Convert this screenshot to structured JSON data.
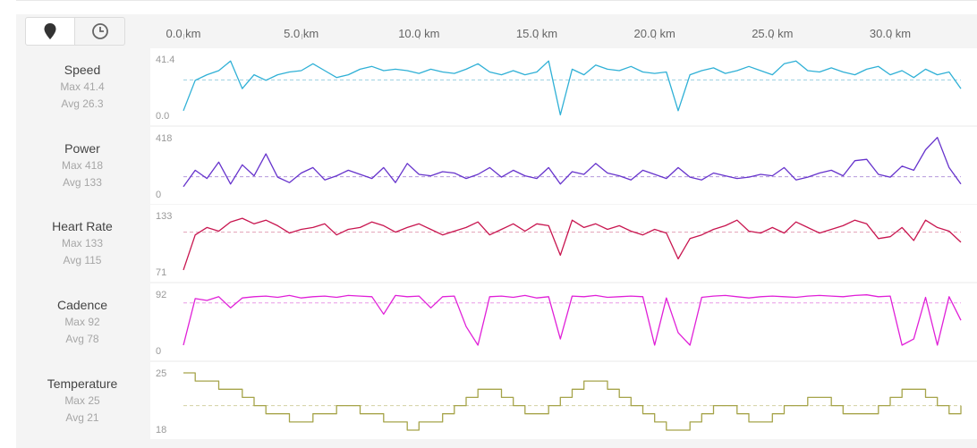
{
  "toolbar": {
    "distance_icon": "map-pin-icon",
    "time_icon": "clock-icon"
  },
  "colors": {
    "speed": "#2fb0d6",
    "power": "#6633cc",
    "heart_rate": "#c8154f",
    "cadence": "#e020d8",
    "temperature": "#a6a44a",
    "avg_line_speed": "#9ccfe0",
    "avg_line_power": "#b59adc",
    "avg_line_heart_rate": "#e3a0b6",
    "avg_line_cadence": "#e99ae6",
    "avg_line_temperature": "#d2d1a3"
  },
  "x_axis": {
    "unit": "km",
    "max": 33.0,
    "ticks": [
      {
        "value": 0,
        "label": "0.0 km"
      },
      {
        "value": 5,
        "label": "5.0 km"
      },
      {
        "value": 10,
        "label": "10.0 km"
      },
      {
        "value": 15,
        "label": "15.0 km"
      },
      {
        "value": 20,
        "label": "20.0 km"
      },
      {
        "value": 25,
        "label": "25.0 km"
      },
      {
        "value": 30,
        "label": "30.0 km"
      }
    ]
  },
  "rows": [
    {
      "key": "speed",
      "label": "Speed",
      "max_text": "Max 41.4",
      "avg_text": "Avg 26.3",
      "ymax_label": "41.4",
      "ymin_label": "0.0"
    },
    {
      "key": "power",
      "label": "Power",
      "max_text": "Max 418",
      "avg_text": "Avg 133",
      "ymax_label": "418",
      "ymin_label": "0"
    },
    {
      "key": "heart_rate",
      "label": "Heart Rate",
      "max_text": "Max 133",
      "avg_text": "Avg 115",
      "ymax_label": "133",
      "ymin_label": "71"
    },
    {
      "key": "cadence",
      "label": "Cadence",
      "max_text": "Max 92",
      "avg_text": "Avg 78",
      "ymax_label": "92",
      "ymin_label": "0"
    },
    {
      "key": "temperature",
      "label": "Temperature",
      "max_text": "Max 25",
      "avg_text": "Avg 21",
      "ymax_label": "25",
      "ymin_label": "18"
    }
  ],
  "chart_data": {
    "type": "line",
    "x": [
      0.0,
      0.5,
      1.0,
      1.5,
      2.0,
      2.5,
      3.0,
      3.5,
      4.0,
      4.5,
      5.0,
      5.5,
      6.0,
      6.5,
      7.0,
      7.5,
      8.0,
      8.5,
      9.0,
      9.5,
      10.0,
      10.5,
      11.0,
      11.5,
      12.0,
      12.5,
      13.0,
      13.5,
      14.0,
      14.5,
      15.0,
      15.5,
      16.0,
      16.5,
      17.0,
      17.5,
      18.0,
      18.5,
      19.0,
      19.5,
      20.0,
      20.5,
      21.0,
      21.5,
      22.0,
      22.5,
      23.0,
      23.5,
      24.0,
      24.5,
      25.0,
      25.5,
      26.0,
      26.5,
      27.0,
      27.5,
      28.0,
      28.5,
      29.0,
      29.5,
      30.0,
      30.5,
      31.0,
      31.5,
      32.0,
      32.5,
      33.0
    ],
    "xlabel": "",
    "series": [
      {
        "name": "Speed",
        "ylim": [
          0,
          41.4
        ],
        "average": 26.3,
        "values": [
          4,
          26,
          30,
          33,
          40,
          20,
          30,
          26,
          30,
          32,
          33,
          38,
          33,
          28,
          30,
          34,
          36,
          33,
          34,
          33,
          31,
          34,
          32,
          31,
          34,
          38,
          32,
          30,
          33,
          30,
          32,
          40,
          1,
          34,
          30,
          37,
          34,
          33,
          36,
          32,
          31,
          32,
          4,
          30,
          33,
          35,
          31,
          33,
          36,
          33,
          30,
          38,
          40,
          33,
          32,
          35,
          32,
          30,
          34,
          36,
          30,
          33,
          28,
          34,
          30,
          32,
          20
        ]
      },
      {
        "name": "Power",
        "ylim": [
          0,
          418
        ],
        "average": 133,
        "values": [
          60,
          180,
          120,
          240,
          80,
          220,
          140,
          300,
          130,
          90,
          160,
          200,
          110,
          140,
          180,
          150,
          120,
          200,
          90,
          230,
          150,
          140,
          170,
          160,
          120,
          150,
          200,
          130,
          180,
          140,
          120,
          200,
          80,
          170,
          150,
          230,
          160,
          140,
          110,
          180,
          150,
          120,
          200,
          130,
          110,
          160,
          140,
          120,
          130,
          150,
          140,
          200,
          110,
          130,
          160,
          180,
          140,
          250,
          260,
          150,
          130,
          210,
          180,
          330,
          420,
          200,
          80
        ]
      },
      {
        "name": "Heart Rate",
        "ylim": [
          71,
          133
        ],
        "average": 115,
        "values": [
          74,
          112,
          120,
          116,
          126,
          130,
          124,
          128,
          122,
          114,
          118,
          120,
          124,
          112,
          118,
          120,
          126,
          122,
          115,
          120,
          124,
          118,
          112,
          116,
          120,
          126,
          112,
          118,
          124,
          116,
          124,
          122,
          90,
          128,
          120,
          124,
          118,
          122,
          116,
          112,
          118,
          114,
          86,
          108,
          112,
          118,
          122,
          128,
          116,
          114,
          120,
          114,
          126,
          120,
          114,
          118,
          122,
          128,
          124,
          108,
          110,
          120,
          106,
          128,
          120,
          116,
          104
        ]
      },
      {
        "name": "Cadence",
        "ylim": [
          0,
          92
        ],
        "average": 78,
        "values": [
          10,
          85,
          82,
          88,
          70,
          86,
          88,
          89,
          87,
          90,
          86,
          88,
          89,
          87,
          90,
          89,
          88,
          60,
          90,
          88,
          89,
          70,
          88,
          89,
          40,
          10,
          88,
          89,
          87,
          90,
          86,
          88,
          20,
          89,
          88,
          90,
          87,
          88,
          89,
          88,
          10,
          86,
          30,
          10,
          87,
          89,
          90,
          88,
          86,
          88,
          89,
          88,
          87,
          89,
          90,
          89,
          88,
          90,
          91,
          88,
          89,
          10,
          20,
          87,
          10,
          88,
          50
        ]
      },
      {
        "name": "Temperature",
        "ylim": [
          18,
          25
        ],
        "average": 21,
        "values": [
          25,
          24,
          24,
          23,
          23,
          22,
          21,
          20,
          20,
          19,
          19,
          20,
          20,
          21,
          21,
          20,
          20,
          19,
          19,
          18,
          19,
          19,
          20,
          21,
          22,
          23,
          23,
          22,
          21,
          20,
          20,
          21,
          22,
          23,
          24,
          24,
          23,
          22,
          21,
          20,
          19,
          18,
          18,
          19,
          20,
          21,
          21,
          20,
          19,
          19,
          20,
          21,
          21,
          22,
          22,
          21,
          20,
          20,
          20,
          21,
          22,
          23,
          23,
          22,
          21,
          20,
          21
        ]
      }
    ]
  }
}
